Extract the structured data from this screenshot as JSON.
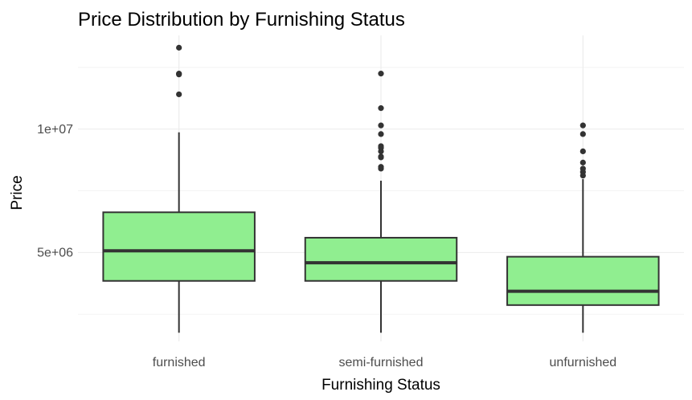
{
  "chart_data": {
    "type": "boxplot",
    "title": "Price Distribution by Furnishing Status",
    "xlabel": "Furnishing Status",
    "ylabel": "Price",
    "ylim": [
      1400000,
      13800000
    ],
    "y_ticks": [
      {
        "value": 5000000,
        "label": "5e+06"
      },
      {
        "value": 10000000,
        "label": "1e+07"
      }
    ],
    "y_minor_ticks": [
      2500000,
      7500000,
      12500000
    ],
    "grid": true,
    "box_fill": "#90ee90",
    "box_stroke": "#333333",
    "categories": [
      "furnished",
      "semi-furnished",
      "unfurnished"
    ],
    "boxes": [
      {
        "category": "furnished",
        "whisker_low": 1750000,
        "q1": 3850000,
        "median": 5070000,
        "q3": 6630000,
        "whisker_high": 9870000,
        "outliers": [
          13300000,
          12250000,
          12215000,
          11410000
        ]
      },
      {
        "category": "semi-furnished",
        "whisker_low": 1750000,
        "q1": 3850000,
        "median": 4585000,
        "q3": 5600000,
        "whisker_high": 7910000,
        "outliers": [
          12250000,
          10850000,
          10150000,
          9800000,
          9310000,
          9240000,
          9100000,
          8890000,
          8855000,
          8400000,
          8470000
        ]
      },
      {
        "category": "unfurnished",
        "whisker_low": 1750000,
        "q1": 2870000,
        "median": 3430000,
        "q3": 4830000,
        "whisker_high": 7980000,
        "outliers": [
          10150000,
          9800000,
          9100000,
          8645000,
          8400000,
          8260000,
          8120000
        ]
      }
    ]
  }
}
